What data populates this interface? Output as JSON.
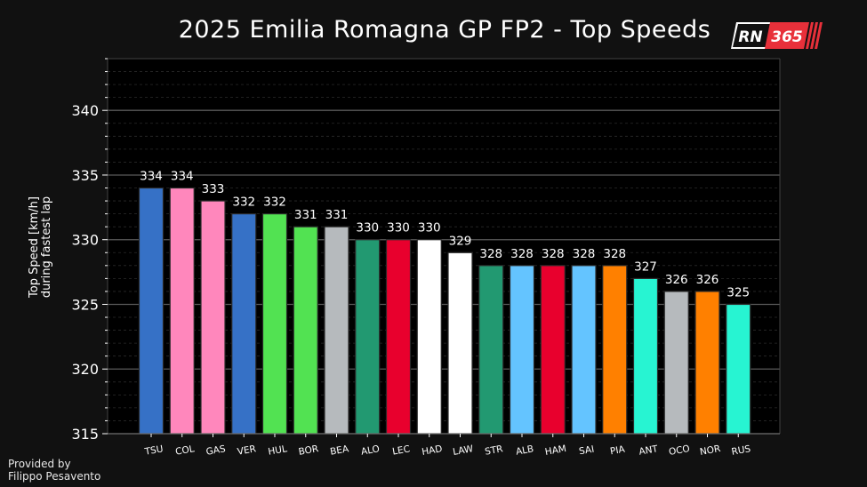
{
  "header": {
    "title": "2025 Emilia Romagna GP FP2 - Top Speeds"
  },
  "logo": {
    "text_left": "RN",
    "text_right": "365",
    "colors": {
      "dark": "#111111",
      "light": "#ffffff",
      "accent": "#e8303a"
    }
  },
  "footer": {
    "credit_line1": "Provided by",
    "credit_line2": "Filippo Pesavento"
  },
  "chart_data": {
    "type": "bar",
    "title": "2025 Emilia Romagna GP FP2 - Top Speeds",
    "xlabel": "",
    "ylabel_line1": "Top Speed [km/h]",
    "ylabel_line2": "during fastest lap",
    "ylim": [
      315,
      344
    ],
    "yticks": [
      315,
      320,
      325,
      330,
      335,
      340
    ],
    "grid": true,
    "categories": [
      "TSU",
      "COL",
      "GAS",
      "VER",
      "HUL",
      "BOR",
      "BEA",
      "ALO",
      "LEC",
      "HAD",
      "LAW",
      "STR",
      "ALB",
      "HAM",
      "SAI",
      "PIA",
      "ANT",
      "OCO",
      "NOR",
      "RUS"
    ],
    "values": [
      334,
      334,
      333,
      332,
      332,
      331,
      331,
      330,
      330,
      330,
      329,
      328,
      328,
      328,
      328,
      328,
      327,
      326,
      326,
      325
    ],
    "colors": [
      "#3671c6",
      "#ff87bc",
      "#ff87bc",
      "#3671c6",
      "#52e252",
      "#52e252",
      "#b6babd",
      "#229971",
      "#e8002d",
      "#ffffff",
      "#ffffff",
      "#229971",
      "#64c4ff",
      "#e8002d",
      "#64c4ff",
      "#ff8000",
      "#27f4d2",
      "#b6babd",
      "#ff8000",
      "#27f4d2"
    ]
  }
}
